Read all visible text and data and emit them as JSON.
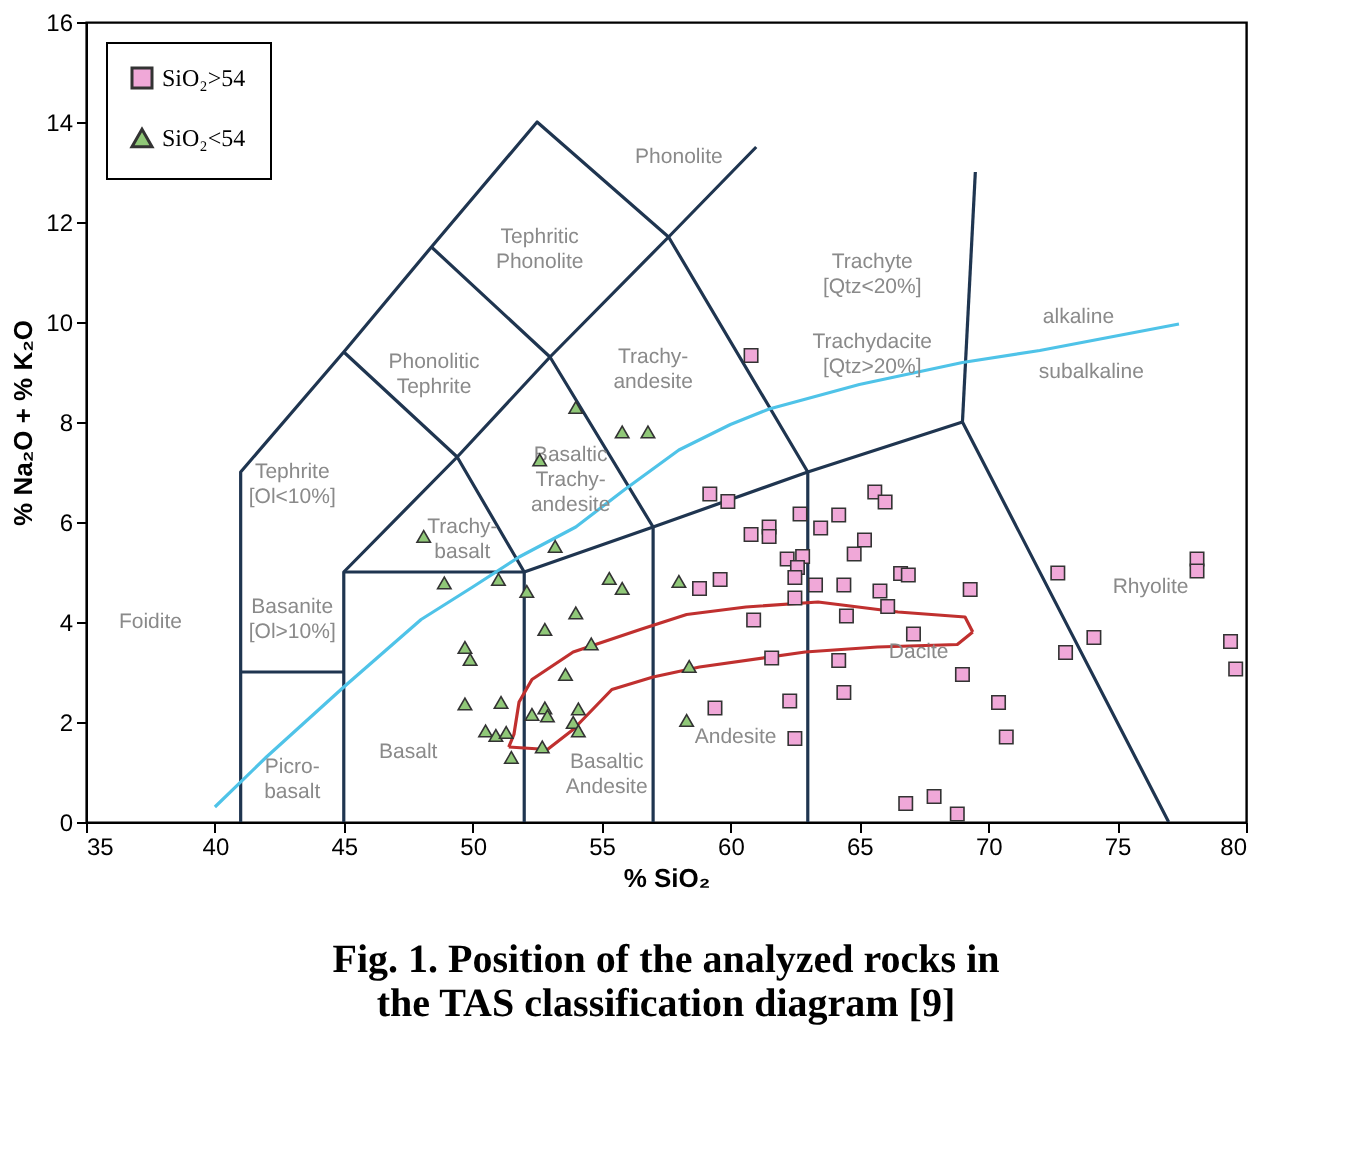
{
  "chart_data": {
    "type": "scatter",
    "title": "Fig. 1. Position of the analyzed rocks in\nthe TAS classification diagram [9]",
    "xlabel": "% SiO₂",
    "ylabel": "% Na₂O + % K₂O",
    "xlim": [
      35,
      80
    ],
    "ylim": [
      0,
      16
    ],
    "xticks": [
      35,
      40,
      45,
      50,
      55,
      60,
      65,
      70,
      75,
      80
    ],
    "yticks": [
      0,
      2,
      4,
      6,
      8,
      10,
      12,
      14,
      16
    ],
    "legend": "top left",
    "grid": false,
    "series": [
      {
        "name": "SiO₂>54",
        "color": "#f0a8d8",
        "marker": "square",
        "x": [
          59.2,
          59.9,
          60.8,
          61.5,
          61.5,
          58.8,
          59.6,
          60.9,
          61.6,
          59.4,
          60.8,
          62.7,
          64.2,
          63.5,
          65.6,
          66.0,
          65.2,
          64.8,
          62.2,
          62.8,
          62.6,
          62.5,
          63.3,
          64.4,
          66.6,
          66.9,
          65.8,
          69.3,
          62.5,
          66.1,
          64.5,
          67.1,
          64.2,
          69.0,
          70.4,
          70.7,
          62.3,
          64.4,
          62.5,
          66.8,
          67.9,
          68.8,
          72.7,
          74.1,
          73.0,
          78.1,
          78.1,
          79.4,
          79.6
        ],
        "values": [
          6.56,
          6.41,
          5.75,
          5.9,
          5.71,
          4.67,
          4.85,
          4.04,
          3.28,
          2.28,
          9.33,
          6.16,
          6.14,
          5.88,
          6.6,
          6.4,
          5.64,
          5.36,
          5.26,
          5.31,
          5.09,
          4.89,
          4.74,
          4.74,
          4.97,
          4.94,
          4.62,
          4.65,
          4.48,
          4.31,
          4.12,
          3.76,
          3.23,
          2.95,
          2.39,
          1.7,
          2.42,
          2.59,
          1.67,
          0.37,
          0.51,
          0.16,
          4.98,
          3.69,
          3.39,
          5.26,
          5.02,
          3.61,
          3.06
        ]
      },
      {
        "name": "SiO₂<54",
        "color": "#90c878",
        "marker": "triangle",
        "x": [
          54.0,
          55.8,
          56.8,
          52.6,
          48.1,
          53.2,
          48.9,
          51.0,
          52.1,
          55.3,
          55.8,
          58.0,
          54.0,
          52.8,
          54.6,
          49.7,
          49.9,
          53.6,
          58.4,
          49.7,
          51.1,
          52.3,
          52.8,
          52.9,
          54.1,
          53.9,
          54.1,
          50.5,
          50.9,
          51.3,
          52.7,
          51.5,
          58.3
        ],
        "values": [
          8.29,
          7.8,
          7.8,
          7.24,
          5.71,
          5.51,
          4.78,
          4.85,
          4.61,
          4.87,
          4.67,
          4.81,
          4.18,
          3.85,
          3.56,
          3.49,
          3.25,
          2.95,
          3.11,
          2.36,
          2.39,
          2.15,
          2.28,
          2.12,
          2.26,
          1.99,
          1.82,
          1.82,
          1.73,
          1.79,
          1.5,
          1.29,
          2.03
        ]
      },
      {
        "type": "line",
        "color": "#1f3550",
        "x": [
          41,
          41,
          45,
          48.4,
          52.5,
          57.6,
          63,
          69,
          77
        ],
        "values": [
          0,
          7,
          9.4,
          11.5,
          14,
          11.7,
          7,
          8,
          0
        ]
      },
      {
        "type": "line",
        "color": "#1f3550",
        "x": [
          41,
          45
        ],
        "values": [
          3,
          3
        ]
      },
      {
        "type": "line",
        "color": "#1f3550",
        "x": [
          45,
          45,
          49.4,
          53,
          57.6,
          61
        ],
        "values": [
          0,
          5,
          7.3,
          9.3,
          11.7,
          13.5
        ]
      },
      {
        "type": "line",
        "color": "#1f3550",
        "x": [
          45,
          52,
          57,
          63
        ],
        "values": [
          5,
          5,
          5.9,
          7
        ]
      },
      {
        "type": "line",
        "color": "#1f3550",
        "x": [
          52,
          52,
          49.4,
          45
        ],
        "values": [
          0,
          5,
          7.3,
          9.4
        ]
      },
      {
        "type": "line",
        "color": "#1f3550",
        "x": [
          57,
          57,
          53,
          48.4
        ],
        "values": [
          0,
          5.9,
          9.3,
          11.5
        ]
      },
      {
        "type": "line",
        "color": "#1f3550",
        "x": [
          63,
          63
        ],
        "values": [
          0,
          7
        ]
      },
      {
        "type": "line",
        "color": "#1f3550",
        "x": [
          69,
          69.5
        ],
        "values": [
          8,
          13
        ]
      },
      {
        "type": "line",
        "color": "#4fc3e8",
        "x": [
          40,
          42,
          45,
          48,
          50,
          51.8,
          54,
          55.9,
          58,
          60,
          61.5,
          65,
          69,
          72,
          77.4
        ],
        "values": [
          0.3,
          1.3,
          2.7,
          4.05,
          4.7,
          5.3,
          5.9,
          6.65,
          7.44,
          7.95,
          8.26,
          8.75,
          9.19,
          9.43,
          9.96
        ]
      },
      {
        "type": "line",
        "color": "#c0302f",
        "x": [
          51.4,
          51.6,
          51.8,
          52.3,
          53.9,
          56.5,
          58.3,
          60.6,
          63.4,
          66.5,
          69.1,
          69.4
        ],
        "values": [
          1.5,
          1.75,
          2.4,
          2.85,
          3.4,
          3.85,
          4.15,
          4.3,
          4.4,
          4.2,
          4.1,
          3.8
        ]
      },
      {
        "type": "line",
        "color": "#c0302f",
        "x": [
          51.4,
          52.9,
          53.9,
          55.4,
          57,
          58.8,
          62.9,
          65.7,
          68.8,
          69.4
        ],
        "values": [
          1.5,
          1.45,
          1.85,
          2.65,
          2.9,
          3.1,
          3.4,
          3.5,
          3.55,
          3.8
        ]
      }
    ],
    "annotations": [
      "Foidite",
      "Picro-\nbasalt",
      "Basalt",
      "Basanite\n[Ol>10%]",
      "Tephrite\n[Ol<10%]",
      "Phonolitic\nTephrite",
      "Tephritic\nPhonolite",
      "Phonolite",
      "Trachy-\nbasalt",
      "Basaltic\nTrachy-\nandesite",
      "Trachy-\nandesite",
      "Trachyte\n[Qtz<20%]",
      "Trachydacite\n[Qtz>20%]",
      "Basaltic\nAndesite",
      "Andesite",
      "Dacite",
      "Rhyolite",
      "alkaline",
      "subalkaline"
    ]
  }
}
